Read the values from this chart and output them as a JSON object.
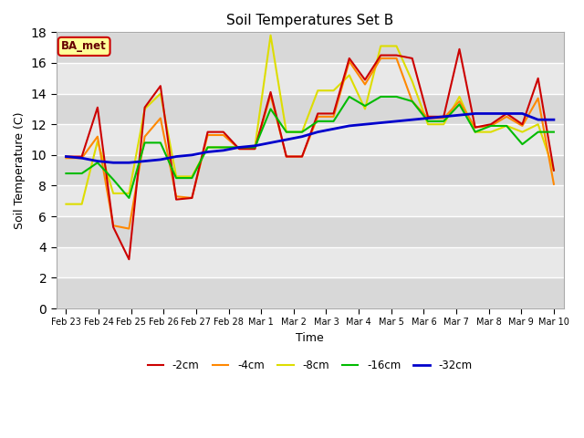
{
  "title": "Soil Temperatures Set B",
  "xlabel": "Time",
  "ylabel": "Soil Temperature (C)",
  "ylim": [
    0,
    18
  ],
  "yticks": [
    0,
    2,
    4,
    6,
    8,
    10,
    12,
    14,
    16,
    18
  ],
  "annotation": "BA_met",
  "legend_labels": [
    "-2cm",
    "-4cm",
    "-8cm",
    "-16cm",
    "-32cm"
  ],
  "legend_colors": [
    "#cc0000",
    "#ff8800",
    "#dddd00",
    "#00bb00",
    "#0000cc"
  ],
  "xtick_labels": [
    "Feb 23",
    "Feb 24",
    "Feb 25",
    "Feb 26",
    "Feb 27",
    "Feb 28",
    "Mar 1",
    "Mar 2",
    "Mar 3",
    "Mar 4",
    "Mar 5",
    "Mar 6",
    "Mar 7",
    "Mar 8",
    "Mar 9",
    "Mar 10"
  ],
  "n_days": 16,
  "depth_2cm": [
    9.9,
    9.9,
    13.1,
    5.3,
    3.2,
    13.1,
    14.5,
    7.1,
    7.2,
    11.5,
    11.5,
    10.4,
    10.4,
    14.1,
    9.9,
    9.9,
    12.7,
    12.7,
    16.3,
    14.9,
    16.5,
    16.5,
    16.3,
    12.5,
    12.5,
    16.9,
    11.8,
    12.0,
    12.7,
    12.0,
    15.0,
    9.0
  ],
  "depth_4cm": [
    9.8,
    9.8,
    11.2,
    5.4,
    5.2,
    11.2,
    12.4,
    7.3,
    7.2,
    11.3,
    11.3,
    10.4,
    10.4,
    13.9,
    9.9,
    9.9,
    12.5,
    12.5,
    16.1,
    14.6,
    16.3,
    16.3,
    13.5,
    12.4,
    12.4,
    13.5,
    11.8,
    11.9,
    12.5,
    11.9,
    13.7,
    8.1
  ],
  "depth_8cm": [
    6.8,
    6.8,
    10.9,
    7.5,
    7.5,
    13.0,
    14.0,
    8.6,
    8.6,
    10.5,
    10.5,
    10.5,
    10.5,
    17.8,
    11.5,
    11.5,
    14.2,
    14.2,
    15.2,
    13.0,
    17.1,
    17.1,
    14.8,
    12.0,
    12.0,
    13.8,
    11.5,
    11.5,
    11.9,
    11.5,
    12.0,
    9.0
  ],
  "depth_16cm": [
    8.8,
    8.8,
    9.5,
    8.4,
    7.2,
    10.8,
    10.8,
    8.5,
    8.5,
    10.5,
    10.5,
    10.5,
    10.5,
    13.0,
    11.5,
    11.5,
    12.2,
    12.2,
    13.8,
    13.2,
    13.8,
    13.8,
    13.5,
    12.2,
    12.2,
    13.3,
    11.5,
    11.9,
    11.9,
    10.7,
    11.5,
    11.5
  ],
  "depth_32cm": [
    9.9,
    9.8,
    9.6,
    9.5,
    9.5,
    9.6,
    9.7,
    9.9,
    10.0,
    10.2,
    10.3,
    10.5,
    10.6,
    10.8,
    11.0,
    11.2,
    11.5,
    11.7,
    11.9,
    12.0,
    12.1,
    12.2,
    12.3,
    12.4,
    12.5,
    12.6,
    12.7,
    12.7,
    12.7,
    12.7,
    12.3,
    12.3
  ]
}
